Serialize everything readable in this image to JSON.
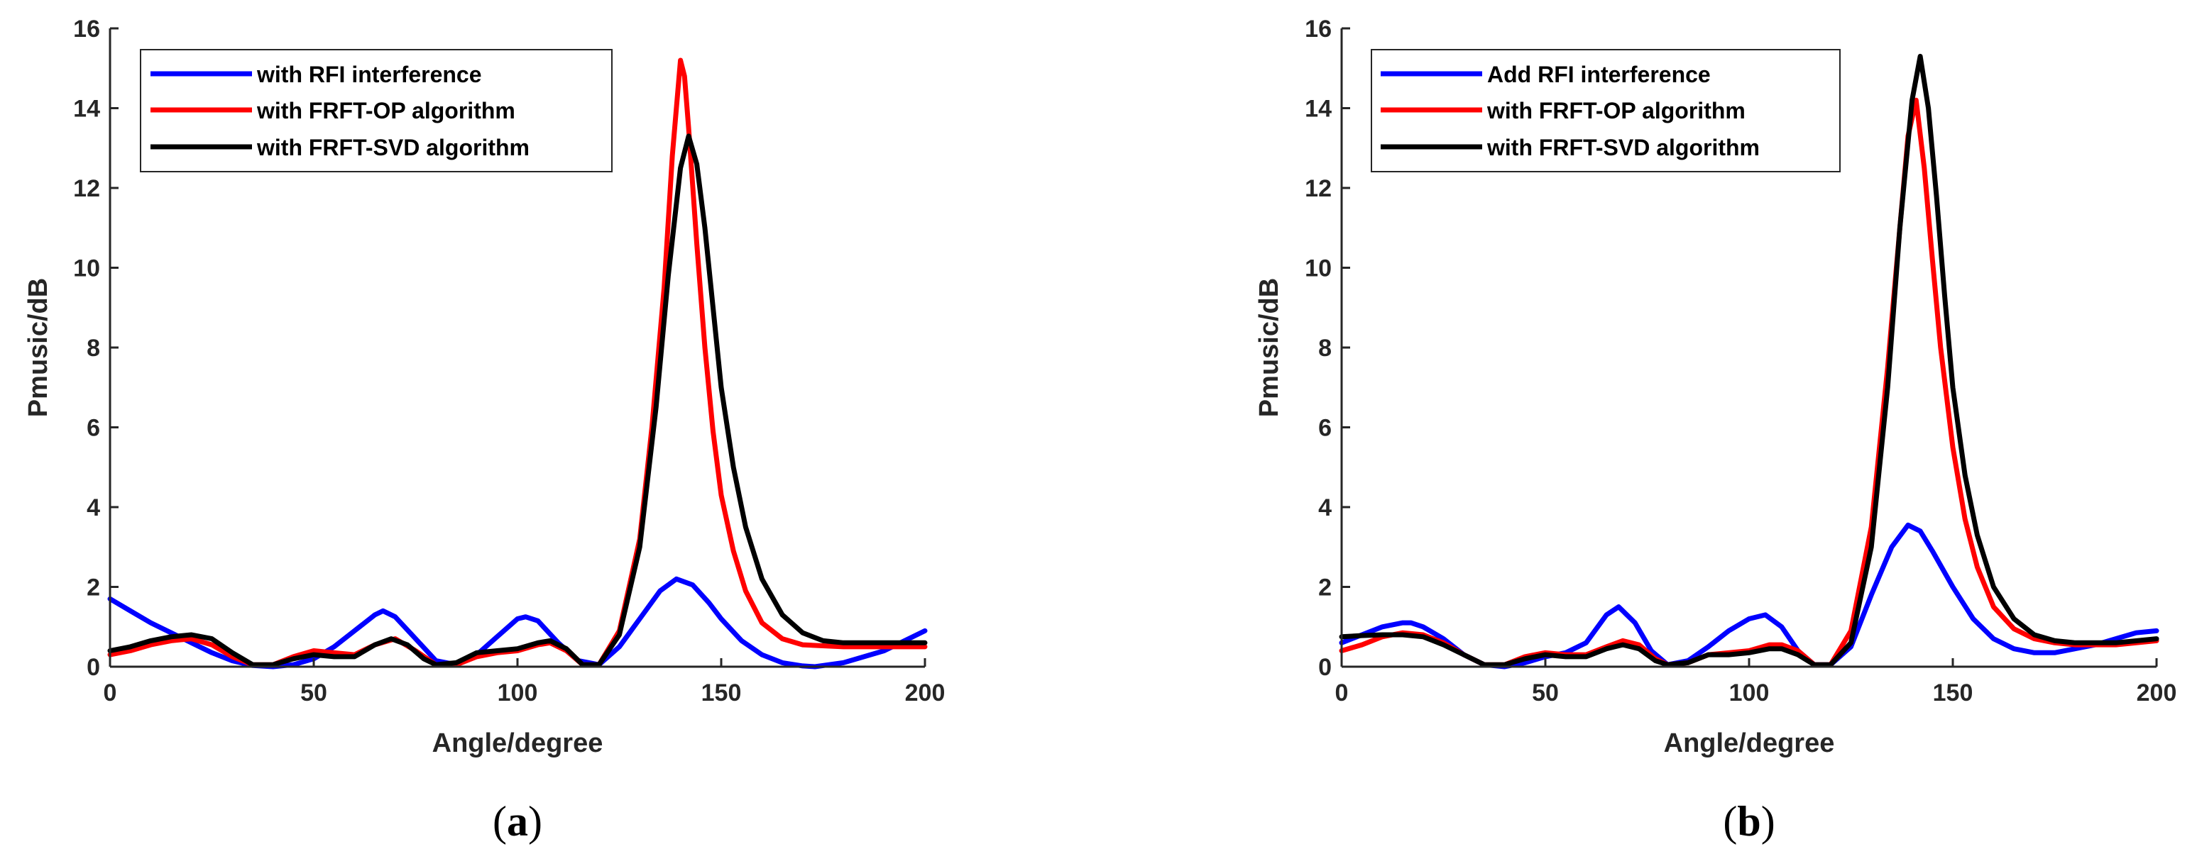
{
  "chart_data": [
    {
      "type": "line",
      "panel_label": "a",
      "title": "",
      "xlabel": "Angle/degree",
      "ylabel": "Pmusic/dB",
      "xlim": [
        0,
        200
      ],
      "ylim": [
        0,
        16
      ],
      "xticks": [
        "0",
        "50",
        "100",
        "150",
        "200"
      ],
      "yticks": [
        "0",
        "2",
        "4",
        "6",
        "8",
        "10",
        "12",
        "14",
        "16"
      ],
      "grid": false,
      "legend_position": "top-left",
      "series": [
        {
          "name": "with RFI interference",
          "color": "#0000ff",
          "x": [
            0,
            5,
            10,
            15,
            20,
            25,
            30,
            35,
            40,
            45,
            50,
            55,
            60,
            65,
            67,
            70,
            75,
            80,
            85,
            90,
            95,
            100,
            102,
            105,
            110,
            115,
            120,
            125,
            130,
            135,
            139,
            143,
            147,
            150,
            155,
            160,
            165,
            170,
            173,
            180,
            190,
            200
          ],
          "y": [
            1.7,
            1.4,
            1.1,
            0.85,
            0.6,
            0.35,
            0.15,
            0.03,
            0.0,
            0.05,
            0.2,
            0.5,
            0.9,
            1.3,
            1.4,
            1.25,
            0.7,
            0.15,
            0.05,
            0.3,
            0.75,
            1.2,
            1.25,
            1.15,
            0.6,
            0.15,
            0.05,
            0.5,
            1.2,
            1.9,
            2.2,
            2.05,
            1.6,
            1.2,
            0.65,
            0.3,
            0.1,
            0.02,
            0.0,
            0.1,
            0.4,
            0.9
          ]
        },
        {
          "name": "with FRFT-OP algorithm",
          "color": "#ff0000",
          "x": [
            0,
            5,
            10,
            15,
            20,
            25,
            30,
            35,
            40,
            45,
            50,
            55,
            60,
            65,
            70,
            75,
            80,
            85,
            90,
            95,
            100,
            105,
            108,
            112,
            116,
            120,
            125,
            130,
            133,
            136,
            138,
            140,
            141,
            142,
            144,
            146,
            148,
            150,
            153,
            156,
            160,
            165,
            170,
            180,
            190,
            200
          ],
          "y": [
            0.3,
            0.4,
            0.55,
            0.65,
            0.7,
            0.55,
            0.25,
            0.05,
            0.05,
            0.25,
            0.4,
            0.35,
            0.3,
            0.55,
            0.7,
            0.4,
            0.05,
            0.05,
            0.25,
            0.35,
            0.4,
            0.55,
            0.6,
            0.4,
            0.05,
            0.05,
            0.9,
            3.2,
            6.0,
            9.5,
            12.8,
            15.2,
            14.8,
            13.5,
            10.6,
            8.0,
            5.9,
            4.3,
            2.9,
            1.9,
            1.1,
            0.7,
            0.55,
            0.5,
            0.5,
            0.5
          ]
        },
        {
          "name": "with FRFT-SVD algorithm",
          "color": "#000000",
          "x": [
            0,
            5,
            10,
            15,
            20,
            25,
            30,
            35,
            40,
            45,
            50,
            55,
            60,
            65,
            69,
            73,
            77,
            80,
            85,
            90,
            95,
            100,
            105,
            108,
            112,
            116,
            120,
            125,
            130,
            134,
            137,
            140,
            142,
            144,
            146,
            148,
            150,
            153,
            156,
            160,
            165,
            170,
            175,
            180,
            190,
            200
          ],
          "y": [
            0.4,
            0.5,
            0.65,
            0.75,
            0.8,
            0.7,
            0.35,
            0.05,
            0.05,
            0.2,
            0.3,
            0.25,
            0.25,
            0.55,
            0.7,
            0.55,
            0.2,
            0.05,
            0.1,
            0.35,
            0.4,
            0.45,
            0.6,
            0.65,
            0.45,
            0.05,
            0.05,
            0.8,
            3.0,
            6.5,
            9.8,
            12.5,
            13.3,
            12.6,
            11.0,
            9.0,
            7.0,
            5.0,
            3.5,
            2.2,
            1.3,
            0.85,
            0.65,
            0.6,
            0.6,
            0.6
          ]
        }
      ]
    },
    {
      "type": "line",
      "panel_label": "b",
      "title": "",
      "xlabel": "Angle/degree",
      "ylabel": "Pmusic/dB",
      "xlim": [
        0,
        200
      ],
      "ylim": [
        0,
        16
      ],
      "xticks": [
        "0",
        "50",
        "100",
        "150",
        "200"
      ],
      "yticks": [
        "0",
        "2",
        "4",
        "6",
        "8",
        "10",
        "12",
        "14",
        "16"
      ],
      "grid": false,
      "legend_position": "top-left",
      "series": [
        {
          "name": "Add RFI interference",
          "color": "#0000ff",
          "x": [
            0,
            5,
            10,
            15,
            17,
            20,
            25,
            30,
            35,
            40,
            45,
            50,
            55,
            60,
            65,
            68,
            72,
            76,
            80,
            85,
            90,
            95,
            100,
            104,
            108,
            112,
            116,
            120,
            125,
            130,
            135,
            139,
            142,
            145,
            150,
            155,
            160,
            165,
            170,
            175,
            180,
            185,
            190,
            195,
            200
          ],
          "y": [
            0.6,
            0.8,
            1.0,
            1.1,
            1.1,
            1.0,
            0.7,
            0.3,
            0.05,
            0.0,
            0.1,
            0.25,
            0.35,
            0.6,
            1.3,
            1.5,
            1.1,
            0.4,
            0.05,
            0.15,
            0.5,
            0.9,
            1.2,
            1.3,
            1.0,
            0.4,
            0.05,
            0.05,
            0.5,
            1.8,
            3.0,
            3.55,
            3.4,
            2.9,
            2.0,
            1.2,
            0.7,
            0.45,
            0.35,
            0.35,
            0.45,
            0.55,
            0.7,
            0.85,
            0.9
          ]
        },
        {
          "name": "with FRFT-OP algorithm",
          "color": "#ff0000",
          "x": [
            0,
            5,
            10,
            15,
            20,
            25,
            30,
            35,
            40,
            45,
            50,
            55,
            60,
            65,
            69,
            73,
            77,
            80,
            85,
            90,
            95,
            100,
            105,
            108,
            112,
            116,
            120,
            125,
            130,
            134,
            137,
            139,
            141,
            143,
            145,
            147,
            150,
            153,
            156,
            160,
            165,
            170,
            175,
            180,
            190,
            200
          ],
          "y": [
            0.4,
            0.55,
            0.75,
            0.85,
            0.8,
            0.6,
            0.3,
            0.05,
            0.05,
            0.25,
            0.35,
            0.3,
            0.3,
            0.5,
            0.65,
            0.55,
            0.2,
            0.05,
            0.1,
            0.3,
            0.35,
            0.4,
            0.55,
            0.55,
            0.4,
            0.05,
            0.05,
            0.9,
            3.5,
            7.5,
            11.0,
            13.3,
            14.2,
            12.5,
            10.2,
            8.0,
            5.5,
            3.7,
            2.5,
            1.5,
            0.95,
            0.7,
            0.6,
            0.55,
            0.55,
            0.65
          ]
        },
        {
          "name": "with FRFT-SVD algorithm",
          "color": "#000000",
          "x": [
            0,
            5,
            10,
            15,
            20,
            25,
            30,
            35,
            40,
            45,
            50,
            55,
            60,
            65,
            69,
            73,
            77,
            80,
            85,
            90,
            95,
            100,
            105,
            108,
            112,
            116,
            120,
            125,
            130,
            134,
            137,
            140,
            142,
            144,
            146,
            148,
            150,
            153,
            156,
            160,
            165,
            170,
            175,
            180,
            190,
            200
          ],
          "y": [
            0.75,
            0.78,
            0.8,
            0.8,
            0.75,
            0.55,
            0.3,
            0.05,
            0.05,
            0.2,
            0.3,
            0.25,
            0.25,
            0.45,
            0.55,
            0.45,
            0.15,
            0.05,
            0.1,
            0.3,
            0.3,
            0.35,
            0.45,
            0.45,
            0.3,
            0.05,
            0.05,
            0.6,
            3.0,
            7.0,
            11.0,
            14.2,
            15.3,
            14.0,
            11.8,
            9.3,
            7.0,
            4.8,
            3.3,
            2.0,
            1.2,
            0.8,
            0.65,
            0.6,
            0.6,
            0.7
          ]
        }
      ]
    }
  ]
}
